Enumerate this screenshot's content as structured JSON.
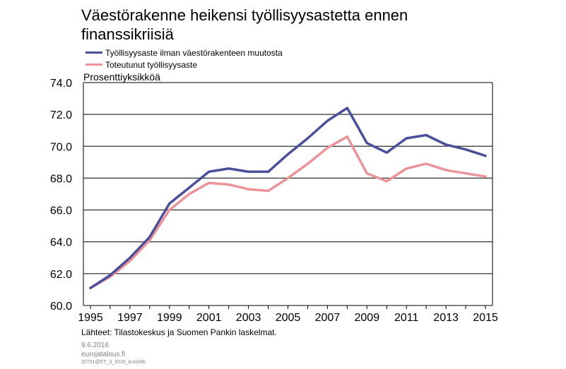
{
  "title": "Väestörakenne heikensi työllisyysastetta ennen finanssikriisiä",
  "unit_label": "Prosenttiyksikköä",
  "source": "Lähteet: Tilastokeskus ja Suomen Pankin laskelmat.",
  "date": "9.6.2016",
  "site": "eurojatalous.fi",
  "code": "32731@ET_3_2016_kuvio5b",
  "colors": {
    "series1": "#4a4f9c",
    "series2": "#ec9398",
    "grid": "#000000"
  },
  "chart_data": {
    "type": "line",
    "x": [
      1995,
      1996,
      1997,
      1998,
      1999,
      2000,
      2001,
      2002,
      2003,
      2004,
      2005,
      2006,
      2007,
      2008,
      2009,
      2010,
      2011,
      2012,
      2013,
      2014,
      2015
    ],
    "x_ticks": [
      "1995",
      "1997",
      "1999",
      "2001",
      "2003",
      "2005",
      "2007",
      "2009",
      "2011",
      "2013",
      "2015"
    ],
    "y_ticks": [
      "60.0",
      "62.0",
      "64.0",
      "66.0",
      "68.0",
      "70.0",
      "72.0",
      "74.0"
    ],
    "ylim": [
      60,
      74
    ],
    "grid": true,
    "legend_position": "top-left",
    "series": [
      {
        "name": "Työllisyysaste ilman väestörakenteen muutosta",
        "color": "#4a4f9c",
        "values": [
          61.1,
          61.9,
          63.0,
          64.3,
          66.4,
          67.4,
          68.4,
          68.6,
          68.4,
          68.4,
          69.5,
          70.5,
          71.6,
          72.4,
          70.2,
          69.6,
          70.5,
          70.7,
          70.1,
          69.8,
          69.4
        ]
      },
      {
        "name": "Toteutunut työllisyysaste",
        "color": "#ec9398",
        "values": [
          61.1,
          61.8,
          62.8,
          64.1,
          66.0,
          67.0,
          67.7,
          67.6,
          67.3,
          67.2,
          68.0,
          68.9,
          69.9,
          70.6,
          68.3,
          67.8,
          68.6,
          68.9,
          68.5,
          68.3,
          68.1
        ]
      }
    ]
  }
}
